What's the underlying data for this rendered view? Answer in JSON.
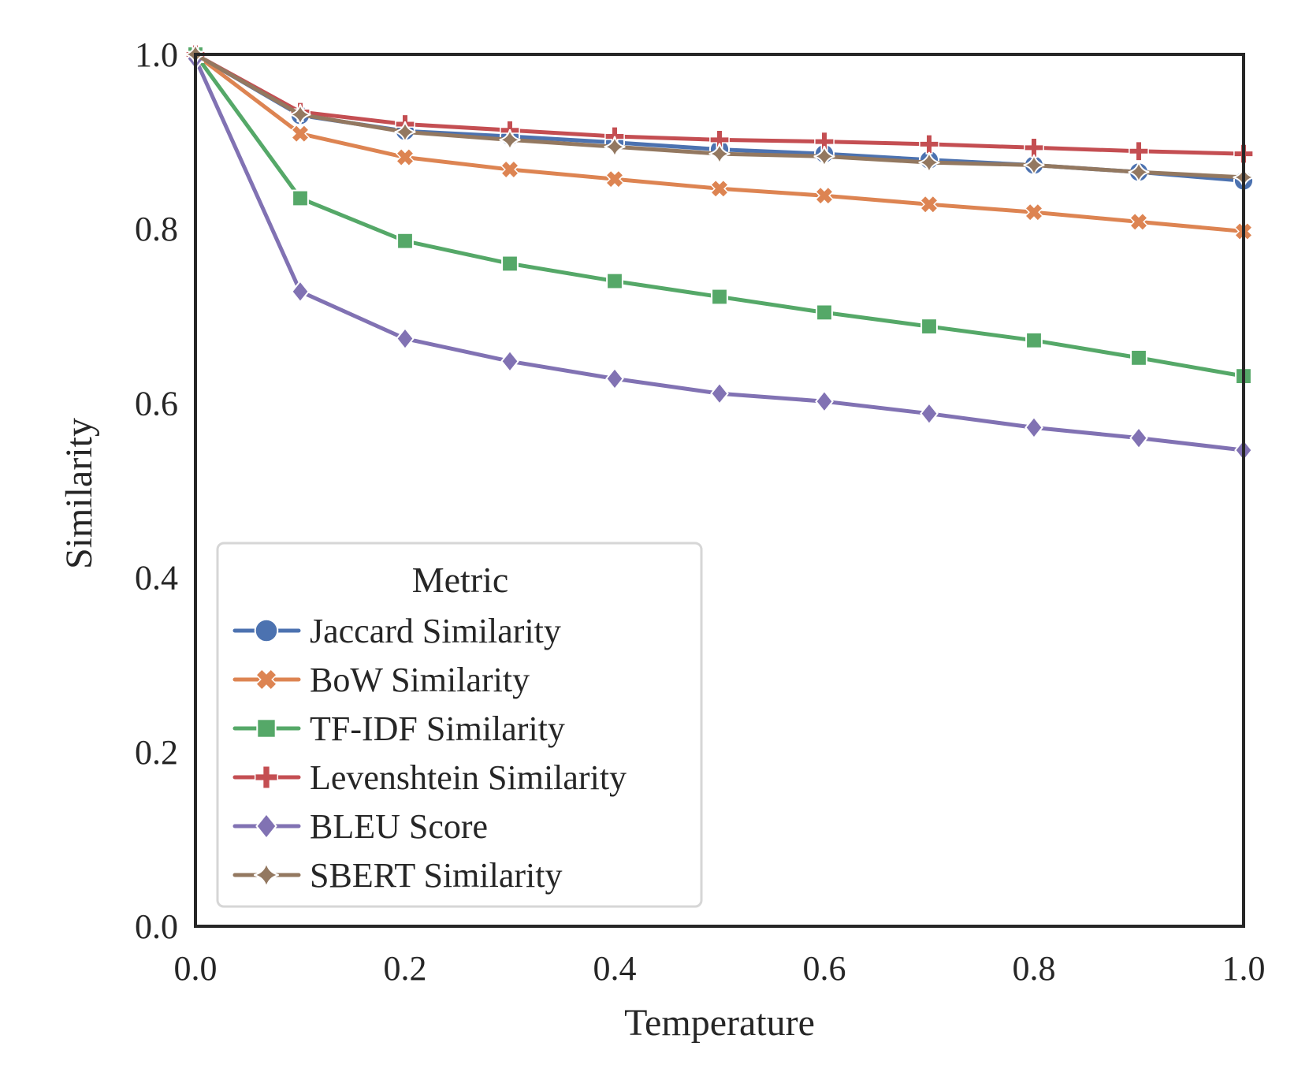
{
  "chart_data": {
    "type": "line",
    "title": "",
    "xlabel": "Temperature",
    "ylabel": "Similarity",
    "xlim": [
      0.0,
      1.0
    ],
    "ylim": [
      0.0,
      1.0
    ],
    "xticks": [
      "0.0",
      "0.2",
      "0.4",
      "0.6",
      "0.8",
      "1.0"
    ],
    "yticks": [
      "0.0",
      "0.2",
      "0.4",
      "0.6",
      "0.8",
      "1.0"
    ],
    "grid": false,
    "legend": {
      "title": "Metric",
      "placement": "lower-left"
    },
    "x": [
      0.0,
      0.1,
      0.2,
      0.3,
      0.4,
      0.5,
      0.6,
      0.7,
      0.8,
      0.9,
      1.0
    ],
    "series": [
      {
        "name": "Jaccard Similarity",
        "color": "#4c72b0",
        "marker": "circle",
        "values": [
          1.0,
          0.93,
          0.912,
          0.906,
          0.899,
          0.891,
          0.886,
          0.879,
          0.873,
          0.865,
          0.855
        ]
      },
      {
        "name": "BoW Similarity",
        "color": "#dd8452",
        "marker": "x",
        "values": [
          1.0,
          0.909,
          0.882,
          0.868,
          0.857,
          0.846,
          0.838,
          0.828,
          0.819,
          0.808,
          0.797
        ]
      },
      {
        "name": "TF-IDF Similarity",
        "color": "#55a868",
        "marker": "square",
        "values": [
          1.0,
          0.835,
          0.786,
          0.76,
          0.74,
          0.722,
          0.704,
          0.688,
          0.672,
          0.652,
          0.631
        ]
      },
      {
        "name": "Levenshtein Similarity",
        "color": "#c44e52",
        "marker": "plus",
        "values": [
          1.0,
          0.934,
          0.92,
          0.913,
          0.906,
          0.902,
          0.9,
          0.897,
          0.893,
          0.889,
          0.886
        ]
      },
      {
        "name": "BLEU Score",
        "color": "#8172b3",
        "marker": "diamond",
        "values": [
          0.995,
          0.728,
          0.674,
          0.648,
          0.628,
          0.611,
          0.602,
          0.588,
          0.572,
          0.56,
          0.546
        ]
      },
      {
        "name": "SBERT Similarity",
        "color": "#937860",
        "marker": "star4",
        "values": [
          1.0,
          0.931,
          0.911,
          0.902,
          0.894,
          0.886,
          0.883,
          0.876,
          0.873,
          0.865,
          0.859
        ]
      }
    ]
  }
}
